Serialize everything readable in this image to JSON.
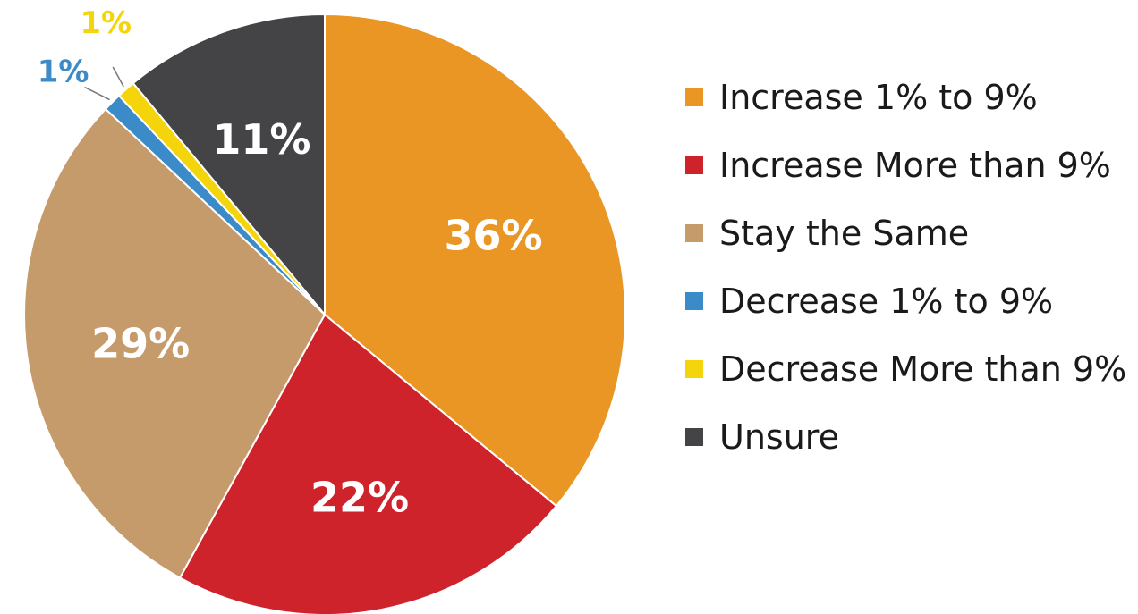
{
  "chart_data": {
    "type": "pie",
    "title": "",
    "categories": [
      "Increase 1% to 9%",
      "Increase More than 9%",
      "Stay the Same",
      "Decrease 1% to 9%",
      "Decrease More than 9%",
      "Unsure"
    ],
    "values": [
      36,
      22,
      29,
      1,
      1,
      11
    ],
    "labels": [
      "36%",
      "22%",
      "29%",
      "1%",
      "1%",
      "11%"
    ],
    "colors": [
      "#e99625",
      "#cf232c",
      "#c59b6c",
      "#3b8bc9",
      "#f4d50c",
      "#444446"
    ],
    "legend_position": "right",
    "start": "12 o'clock",
    "direction": "clockwise"
  }
}
